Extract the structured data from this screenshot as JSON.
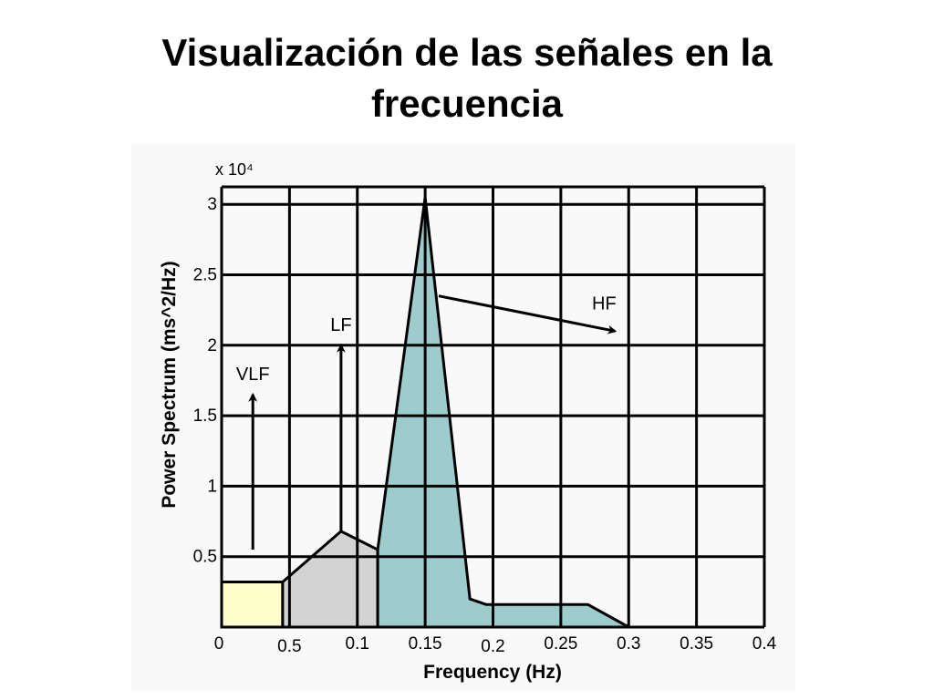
{
  "slide": {
    "title_line1": "Visualización de las señales en la",
    "title_line2": "frecuencia"
  },
  "chart_data": {
    "type": "area",
    "xlabel": "Frequency (Hz)",
    "ylabel": "Power Spectrum (ms^2/Hz)",
    "y_multiplier": "x 10⁴",
    "x_tick_labels": [
      "0",
      "0.5",
      "0.1",
      "0.15",
      "0.2",
      "0.25",
      "0.3",
      "0.35",
      "0.4"
    ],
    "y_tick_labels": [
      "0.5",
      "1",
      "1.5",
      "2",
      "2.5",
      "3"
    ],
    "xlim": [
      0,
      0.4
    ],
    "ylim": [
      0,
      3.1
    ],
    "grid": true,
    "bands": [
      {
        "name": "VLF",
        "color": "#ffffcc",
        "points": [
          [
            0,
            0
          ],
          [
            0,
            0.32
          ],
          [
            0.045,
            0.32
          ],
          [
            0.045,
            0
          ]
        ]
      },
      {
        "name": "LF",
        "color": "#d3d3d3",
        "points": [
          [
            0.045,
            0
          ],
          [
            0.045,
            0.32
          ],
          [
            0.088,
            0.68
          ],
          [
            0.115,
            0.55
          ],
          [
            0.115,
            0
          ]
        ]
      },
      {
        "name": "HF",
        "color": "#9ecccc",
        "points": [
          [
            0.115,
            0
          ],
          [
            0.115,
            0.55
          ],
          [
            0.15,
            3.05
          ],
          [
            0.183,
            0.2
          ],
          [
            0.195,
            0.16
          ],
          [
            0.27,
            0.16
          ],
          [
            0.3,
            0
          ]
        ]
      }
    ],
    "annotations": [
      {
        "label": "VLF",
        "arrow_x": 0.023,
        "arrow_from_y": 0.55,
        "arrow_to_y": 1.65
      },
      {
        "label": "LF",
        "arrow_x": 0.088,
        "arrow_from_y": 0.68,
        "arrow_to_y": 2.0
      },
      {
        "label": "HF",
        "arrow_from": [
          0.16,
          2.35
        ],
        "arrow_to": [
          0.29,
          2.1
        ]
      }
    ]
  }
}
